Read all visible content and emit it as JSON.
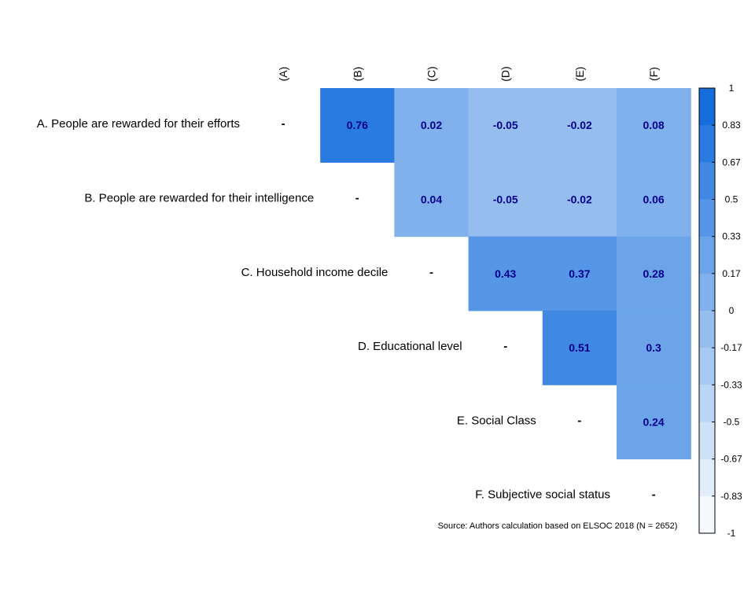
{
  "chart_data": {
    "type": "heatmap",
    "col_labels": [
      "(A)",
      "(B)",
      "(C)",
      "(D)",
      "(E)",
      "(F)"
    ],
    "row_labels": [
      "A. People are rewarded for their efforts",
      "B. People are rewarded for their intelligence",
      "C. Household income decile",
      "D. Educational level",
      "E. Social Class",
      "F. Subjective social status"
    ],
    "diagonal_label": "-",
    "cells": [
      {
        "row": 0,
        "col": 1,
        "value": 0.76,
        "label": "0.76"
      },
      {
        "row": 0,
        "col": 2,
        "value": 0.02,
        "label": "0.02"
      },
      {
        "row": 0,
        "col": 3,
        "value": -0.05,
        "label": "-0.05"
      },
      {
        "row": 0,
        "col": 4,
        "value": -0.02,
        "label": "-0.02"
      },
      {
        "row": 0,
        "col": 5,
        "value": 0.08,
        "label": "0.08"
      },
      {
        "row": 1,
        "col": 2,
        "value": 0.04,
        "label": "0.04"
      },
      {
        "row": 1,
        "col": 3,
        "value": -0.05,
        "label": "-0.05"
      },
      {
        "row": 1,
        "col": 4,
        "value": -0.02,
        "label": "-0.02"
      },
      {
        "row": 1,
        "col": 5,
        "value": 0.06,
        "label": "0.06"
      },
      {
        "row": 2,
        "col": 3,
        "value": 0.43,
        "label": "0.43"
      },
      {
        "row": 2,
        "col": 4,
        "value": 0.37,
        "label": "0.37"
      },
      {
        "row": 2,
        "col": 5,
        "value": 0.28,
        "label": "0.28"
      },
      {
        "row": 3,
        "col": 4,
        "value": 0.51,
        "label": "0.51"
      },
      {
        "row": 3,
        "col": 5,
        "value": 0.3,
        "label": "0.3"
      },
      {
        "row": 4,
        "col": 5,
        "value": 0.24,
        "label": "0.24"
      }
    ],
    "scale": {
      "min": -1,
      "max": 1,
      "ticks": [
        "1",
        "0.83",
        "0.67",
        "0.5",
        "0.33",
        "0.17",
        "0",
        "-0.17",
        "-0.33",
        "-0.5",
        "-0.67",
        "-0.83",
        "-1"
      ]
    },
    "caption": "Source: Authors calculation based on ELSOC 2018 (N = 2652)",
    "colors": {
      "cell_label": "#00008B",
      "scale_low": "#FFFFFF",
      "scale_mid": "#8BB8EE",
      "scale_high": "#0A66DA"
    }
  }
}
